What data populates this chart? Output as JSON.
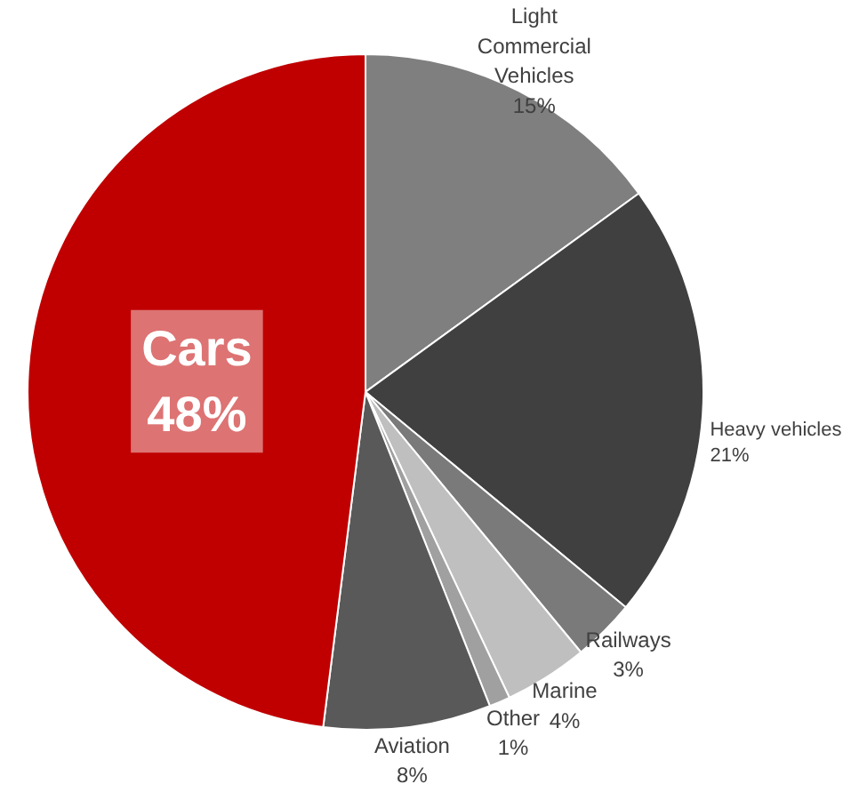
{
  "chart_data": {
    "type": "pie",
    "categories": [
      "Light Commercial Vehicles",
      "Heavy vehicles",
      "Railways",
      "Marine",
      "Other",
      "Aviation",
      "Cars"
    ],
    "values": [
      15,
      21,
      3,
      4,
      1,
      8,
      48
    ],
    "colors": [
      "#7f7f7f",
      "#404040",
      "#7a7a7a",
      "#bfbfbf",
      "#a0a0a0",
      "#595959",
      "#c00000"
    ],
    "value_labels": [
      "15%",
      "21%",
      "3%",
      "4%",
      "1%",
      "8%",
      "48%"
    ]
  }
}
